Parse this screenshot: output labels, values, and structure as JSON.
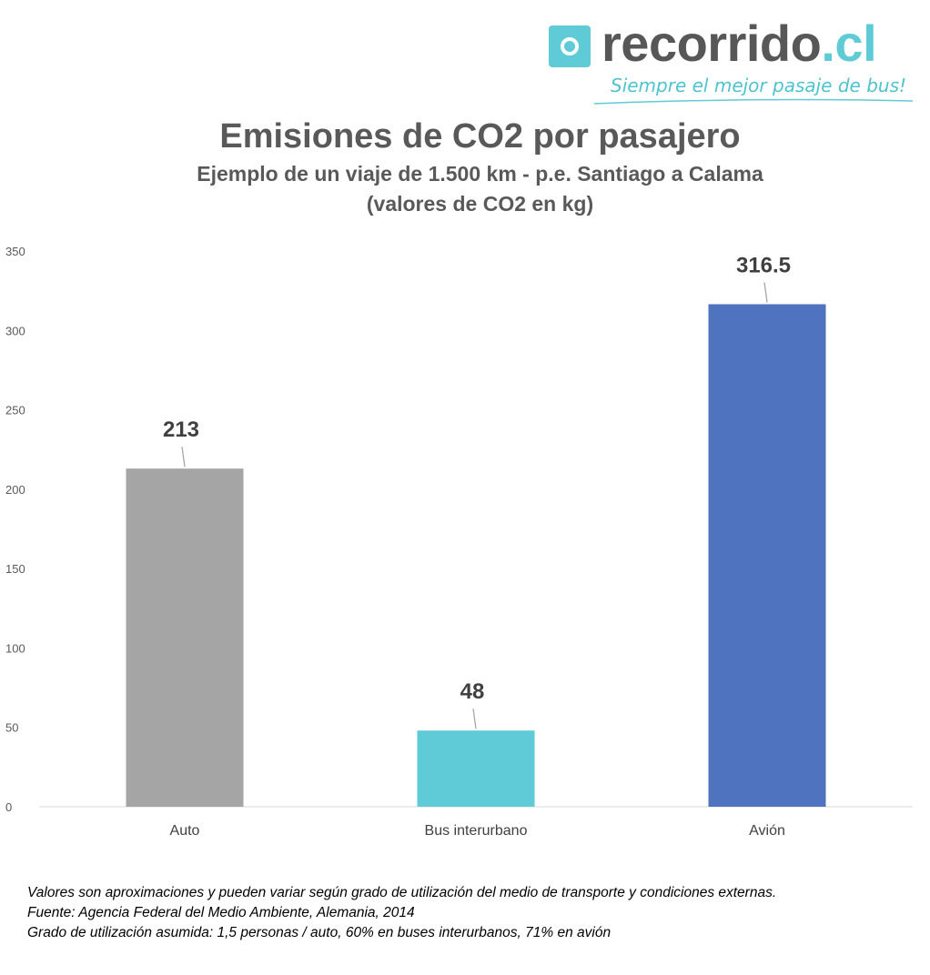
{
  "brand": {
    "name_main": "recorrido",
    "name_suffix": ".cl",
    "tagline": "Siempre el mejor pasaje de bus!",
    "accent_color": "#5ecbd6"
  },
  "chart_data": {
    "type": "bar",
    "title": "Emisiones de CO2 por pasajero",
    "subtitle_lines": [
      "Ejemplo de un viaje de 1.500 km - p.e. Santiago a Calama",
      "(valores de CO2 en kg)"
    ],
    "categories": [
      "Auto",
      "Bus interurbano",
      "Avión"
    ],
    "values": [
      213,
      48,
      316.5
    ],
    "data_labels": [
      "213",
      "48",
      "316.5"
    ],
    "colors": [
      "#a5a5a5",
      "#5ecbd6",
      "#4f73be"
    ],
    "ylim": [
      0,
      350
    ],
    "yticks": [
      0,
      50,
      100,
      150,
      200,
      250,
      300,
      350
    ],
    "xlabel": "",
    "ylabel": "",
    "grid": false,
    "legend": "none"
  },
  "notes": [
    "Valores son aproximaciones y pueden variar según grado de utilización del medio de transporte y condiciones externas.",
    "Fuente: Agencia Federal del Medio Ambiente, Alemania, 2014",
    "Grado de utilización asumida: 1,5 personas / auto, 60% en buses interurbanos, 71% en avión"
  ]
}
